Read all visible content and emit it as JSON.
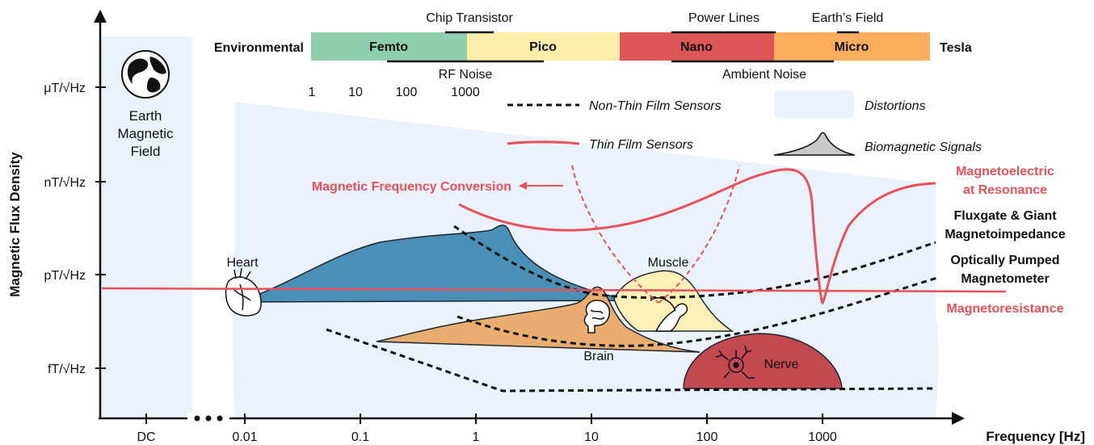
{
  "axes": {
    "y_title": "Magnetic Flux Density",
    "y_ticks": [
      "μT/√Hz",
      "nT/√Hz",
      "pT/√Hz",
      "fT/√Hz"
    ],
    "x_title": "Frequency [Hz]",
    "x_ticks": [
      "DC",
      "0.01",
      "0.1",
      "1",
      "10",
      "100",
      "1000"
    ]
  },
  "earth_field": {
    "label_line1": "Earth",
    "label_line2": "Magnetic",
    "label_line3": "Field"
  },
  "tesla_bar": {
    "left_label": "Environmental",
    "right_label": "Tesla",
    "segments": [
      {
        "label": "Femto",
        "color": "#8fcfad"
      },
      {
        "label": "Pico",
        "color": "#fdeda9"
      },
      {
        "label": "Nano",
        "color": "#dd5656"
      },
      {
        "label": "Micro",
        "color": "#fcae5e"
      }
    ],
    "top_labels": [
      "Chip Transistor",
      "Power Lines",
      "Earth’s Field"
    ],
    "bottom_labels": [
      "RF Noise",
      "Ambient Noise"
    ],
    "scale": [
      "1",
      "10",
      "100",
      "1000"
    ]
  },
  "legend": {
    "non_thin": "Non-Thin Film Sensors",
    "thin": "Thin Film Sensors",
    "distortions": "Distortions",
    "biomagnetic": "Biomagnetic Signals"
  },
  "signals": {
    "heart": "Heart",
    "muscle": "Muscle",
    "brain": "Brain",
    "nerve": "Nerve"
  },
  "sensors": {
    "mfc": "Magnetic Frequency Conversion",
    "me_line1": "Magnetoelectric",
    "me_line2": "at Resonance",
    "flux_line1": "Fluxgate & Giant",
    "flux_line2": "Magnetoimpedance",
    "opm_line1": "Optically Pumped",
    "opm_line2": "Magnetometer",
    "mr": "Magnetoresistance"
  },
  "colors": {
    "red": "#e9505a",
    "heart_fill": "#4a8fb5",
    "brain_fill": "#e8ad6f",
    "muscle_fill": "#fdf1b8",
    "nerve_fill": "#c1494f",
    "distortion": "#eaf2fb"
  }
}
